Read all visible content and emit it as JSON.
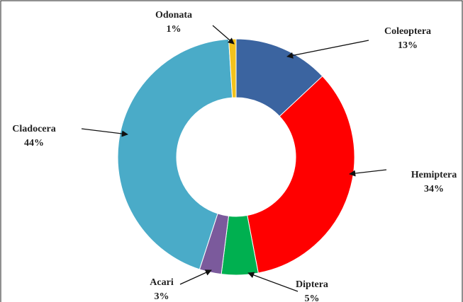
{
  "chart_data": {
    "type": "donut",
    "categories": [
      "Coleoptera",
      "Hemiptera",
      "Diptera",
      "Acari",
      "Cladocera",
      "Odonata"
    ],
    "values": [
      13,
      34,
      5,
      3,
      44,
      1
    ],
    "value_labels": [
      "13%",
      "34%",
      "5%",
      "3%",
      "44%",
      "1%"
    ],
    "colors": [
      "#3b64a0",
      "#ff0000",
      "#00b050",
      "#7b5a9c",
      "#4aabc8",
      "#f3c21b"
    ]
  }
}
